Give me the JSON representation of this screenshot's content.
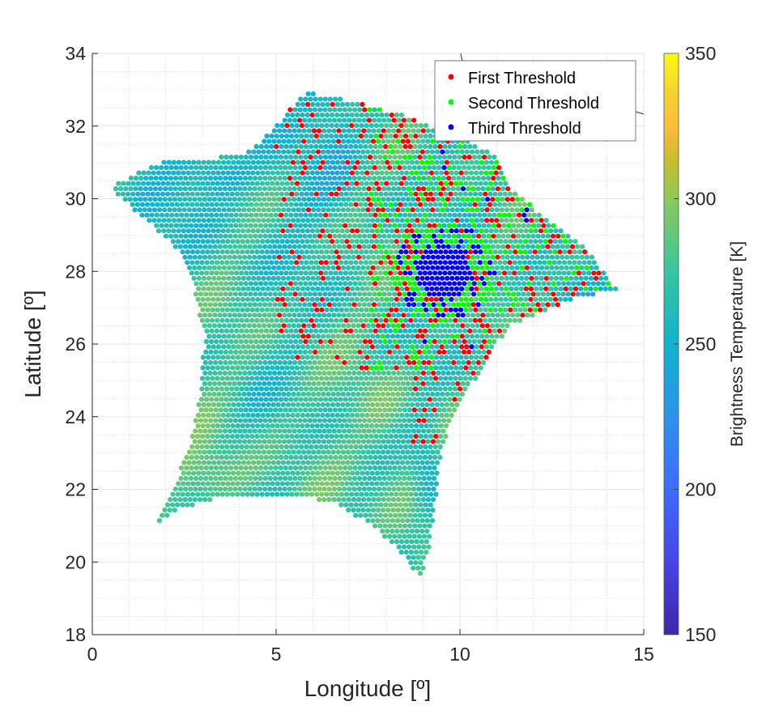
{
  "chart_data": {
    "type": "scatter",
    "title": "",
    "xlabel": "Longitude [º]",
    "ylabel": "Latitude [º]",
    "xlim": [
      0,
      15
    ],
    "ylim": [
      18,
      34
    ],
    "xticks": [
      0,
      5,
      10,
      15
    ],
    "yticks": [
      18,
      20,
      22,
      24,
      26,
      28,
      30,
      32,
      34
    ],
    "xtick_labels": [
      "0",
      "5",
      "10",
      "15"
    ],
    "ytick_labels": [
      "18",
      "20",
      "22",
      "24",
      "26",
      "28",
      "30",
      "32",
      "34"
    ],
    "grid": true,
    "minor_grid": true,
    "colorbar": {
      "label": "Brightness Temperature [K]",
      "range": [
        150,
        350
      ],
      "ticks": [
        150,
        200,
        250,
        300,
        350
      ],
      "tick_labels": [
        "150",
        "200",
        "250",
        "300",
        "350"
      ],
      "colormap": "parula"
    },
    "footprint_outline": [
      [
        0.45,
        30.3
      ],
      [
        1.2,
        30.7
      ],
      [
        2.0,
        31.05
      ],
      [
        3.2,
        31.1
      ],
      [
        4.2,
        31.25
      ],
      [
        4.9,
        31.9
      ],
      [
        5.8,
        32.95
      ],
      [
        7.0,
        32.7
      ],
      [
        8.5,
        32.3
      ],
      [
        10.0,
        31.7
      ],
      [
        11.0,
        31.2
      ],
      [
        11.4,
        30.3
      ],
      [
        12.4,
        29.4
      ],
      [
        13.4,
        28.7
      ],
      [
        14.3,
        27.45
      ],
      [
        13.2,
        27.3
      ],
      [
        12.3,
        26.9
      ],
      [
        11.5,
        26.6
      ],
      [
        11.0,
        26.0
      ],
      [
        10.4,
        25.0
      ],
      [
        9.9,
        24.2
      ],
      [
        9.5,
        23.1
      ],
      [
        9.35,
        21.8
      ],
      [
        9.2,
        20.6
      ],
      [
        8.95,
        19.5
      ],
      [
        8.3,
        20.4
      ],
      [
        7.6,
        21.0
      ],
      [
        6.6,
        21.6
      ],
      [
        5.5,
        21.85
      ],
      [
        4.2,
        21.85
      ],
      [
        3.2,
        21.7
      ],
      [
        2.4,
        21.45
      ],
      [
        1.7,
        21.05
      ],
      [
        2.2,
        22.0
      ],
      [
        2.65,
        23.2
      ],
      [
        2.95,
        24.8
      ],
      [
        3.05,
        26.2
      ],
      [
        2.75,
        27.6
      ],
      [
        2.3,
        28.6
      ],
      [
        1.6,
        29.3
      ],
      [
        0.9,
        29.9
      ]
    ],
    "background_series": {
      "name": "Brightness Temperature",
      "description": "dense footprint samples colored by temperature",
      "typical_range": [
        220,
        330
      ]
    },
    "series": [
      {
        "name": "First Threshold",
        "color": "#ff0000"
      },
      {
        "name": "Second Threshold",
        "color": "#00ff00"
      },
      {
        "name": "Third Threshold",
        "color": "#0000ff"
      }
    ],
    "threshold_regions": {
      "third_threshold_cluster_center": [
        9.5,
        28.0
      ],
      "threshold_density_region": {
        "lon": [
          5.5,
          12.5
        ],
        "lat": [
          25.5,
          33
        ]
      }
    },
    "legend": {
      "position": "top-right",
      "entries": [
        "First Threshold",
        "Second Threshold",
        "Third Threshold"
      ]
    }
  }
}
